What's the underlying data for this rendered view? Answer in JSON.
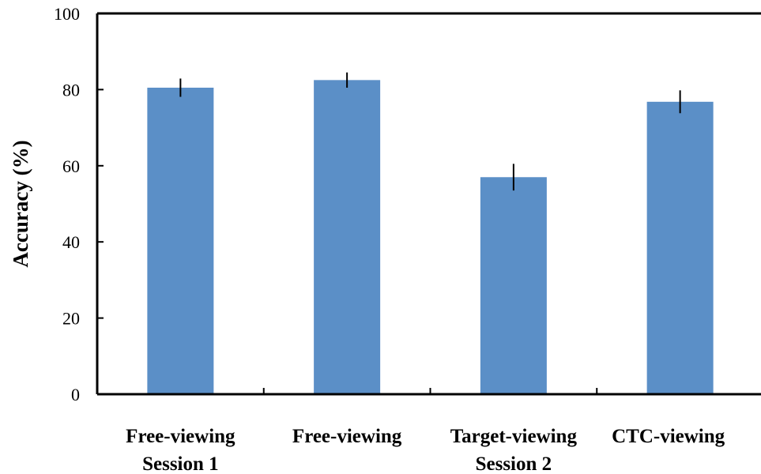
{
  "chart_data": {
    "type": "bar",
    "categories": [
      [
        "Free-viewing",
        "Session 1"
      ],
      [
        "Free-viewing",
        ""
      ],
      [
        "Target-viewing",
        "Session 2"
      ],
      [
        "CTC-viewing",
        ""
      ]
    ],
    "series": [
      {
        "values": [
          80.5,
          82.5,
          57.0,
          76.8
        ],
        "errors": [
          2.4,
          2.0,
          3.5,
          3.0
        ]
      }
    ],
    "title": "",
    "xlabel": "",
    "ylabel": "Accuracy (%)",
    "ylim": [
      0,
      100
    ],
    "yticks": [
      0,
      20,
      40,
      60,
      80,
      100
    ],
    "grid": false,
    "legend": "none",
    "colors": {
      "bar": "#5b8fc7",
      "axis": "#000000",
      "error_bar": "#000000"
    }
  }
}
